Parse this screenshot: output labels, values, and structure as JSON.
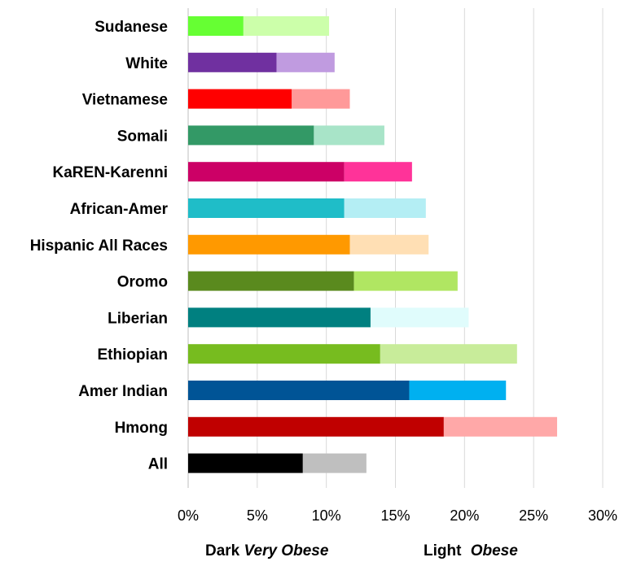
{
  "chart_data": {
    "type": "bar",
    "orientation": "horizontal",
    "stacked": true,
    "categories": [
      "Sudanese",
      "White",
      "Vietnamese",
      "Somali",
      "KaREN-Karenni",
      "African-Amer",
      "Hispanic All Races",
      "Oromo",
      "Liberian",
      "Ethiopian",
      "Amer Indian",
      "Hmong",
      "All"
    ],
    "series": [
      {
        "values": [
          4.0,
          6.4,
          7.5,
          9.1,
          11.3,
          11.3,
          11.7,
          12.0,
          13.2,
          13.9,
          16.0,
          18.5,
          8.3
        ]
      },
      {
        "values": [
          6.2,
          4.2,
          4.2,
          5.1,
          4.9,
          5.9,
          5.7,
          7.5,
          7.1,
          9.9,
          7.0,
          8.2,
          4.6
        ]
      }
    ],
    "colors_dark": [
      "#66ff33",
      "#7030a0",
      "#ff0000",
      "#339966",
      "#cc0066",
      "#1fbdc8",
      "#ff9900",
      "#5a8a1e",
      "#008080",
      "#77bc1f",
      "#005496",
      "#c00000",
      "#000000"
    ],
    "colors_light": [
      "#ccffaa",
      "#c09be0",
      "#ff9999",
      "#a8e4c8",
      "#ff3399",
      "#b4eef4",
      "#ffdfb4",
      "#b0e662",
      "#e0fcfc",
      "#c8ec9a",
      "#00b0f0",
      "#ffa8a8",
      "#bfbfbf"
    ],
    "x_ticks": [
      0,
      5,
      10,
      15,
      20,
      25,
      30
    ],
    "x_tick_labels": [
      "0%",
      "5%",
      "10%",
      "15%",
      "20%",
      "25%",
      "30%"
    ],
    "xlim": [
      0,
      30
    ],
    "grid": "vertical",
    "legend_placement": "bottom"
  },
  "legend": {
    "dark_word": "Dark",
    "dark_series": "Very Obese",
    "light_word": "Light",
    "light_series": "Obese"
  }
}
